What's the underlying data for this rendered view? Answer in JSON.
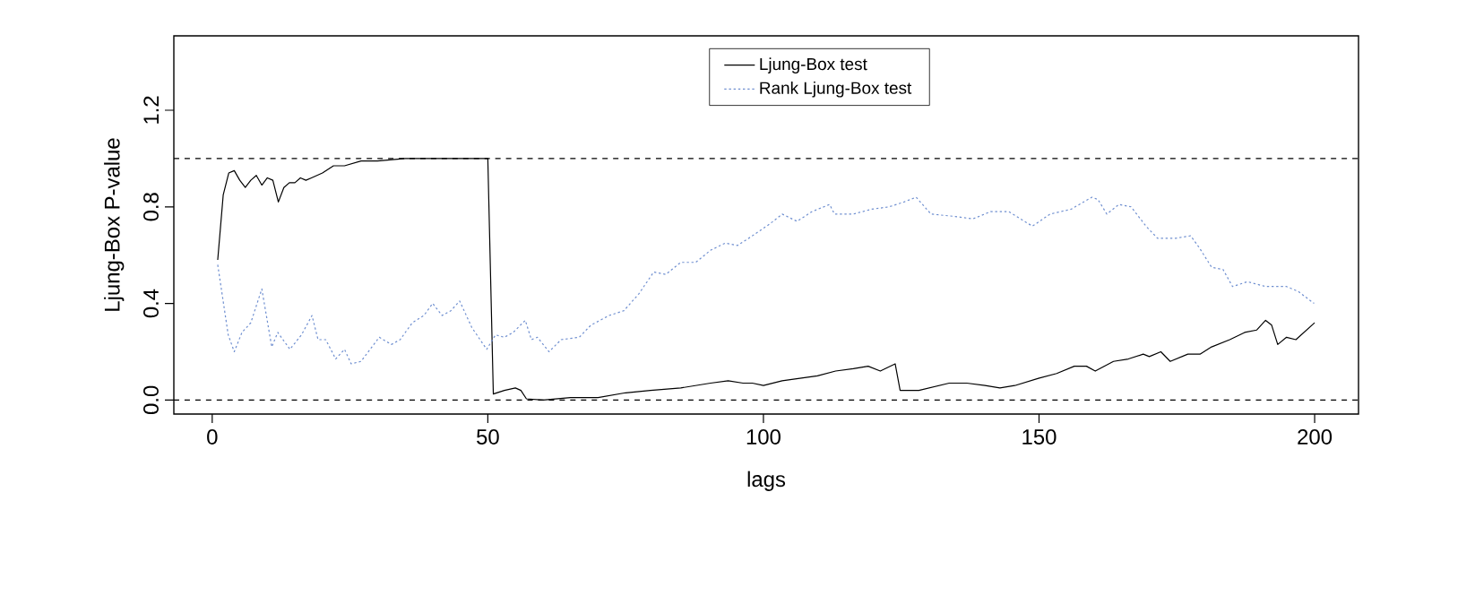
{
  "chart_data": {
    "type": "line",
    "xlabel": "lags",
    "ylabel": "Ljung-Box P-value",
    "xlim": [
      -6.96,
      207.96
    ],
    "ylim": [
      -0.058,
      1.508
    ],
    "xticks": [
      0,
      50,
      100,
      150,
      200
    ],
    "yticks": [
      {
        "value": 0,
        "label": "0.0"
      },
      {
        "value": 0.4,
        "label": "0.4"
      },
      {
        "value": 0.8,
        "label": "0.8"
      },
      {
        "value": 1.2,
        "label": "1.2"
      }
    ],
    "legend": "top",
    "ref_lines": [
      {
        "axis": "y",
        "value": 0,
        "color": "#000000",
        "line_style": "dashed"
      },
      {
        "axis": "y",
        "value": 1,
        "color": "#000000",
        "line_style": "dashed"
      }
    ],
    "series": [
      {
        "name": "Ljung-Box test",
        "color": "#000000",
        "line_style": "solid",
        "x": [
          1,
          2,
          3,
          4,
          5,
          6,
          7,
          8,
          9,
          10,
          11,
          12,
          13,
          14,
          15,
          16,
          17,
          18,
          20,
          22,
          24,
          27,
          30,
          35,
          40,
          45,
          50,
          51,
          53,
          55,
          56,
          57,
          60,
          65,
          70,
          75,
          79.5,
          85,
          90.4,
          93.6,
          96.3,
          98,
          100,
          103.4,
          106.6,
          109.8,
          113.1,
          116.3,
          119,
          121.2,
          123.9,
          124.8,
          128.2,
          133.7,
          136.9,
          140.2,
          142.9,
          145.6,
          149.9,
          153.2,
          156.4,
          158.6,
          160.2,
          163.5,
          166.2,
          168.9,
          170,
          172.1,
          173.8,
          177,
          179.2,
          181.3,
          184.6,
          187.3,
          189.5,
          191.1,
          192.2,
          193.3,
          194.9,
          196.6,
          200
        ],
        "values": [
          0.58,
          0.85,
          0.94,
          0.95,
          0.91,
          0.88,
          0.91,
          0.93,
          0.89,
          0.92,
          0.91,
          0.82,
          0.88,
          0.9,
          0.9,
          0.92,
          0.91,
          0.92,
          0.94,
          0.97,
          0.97,
          0.99,
          0.99,
          1.0,
          1.0,
          1.0,
          1.0,
          0.025,
          0.04,
          0.05,
          0.04,
          0.005,
          0.0,
          0.01,
          0.01,
          0.03,
          0.04,
          0.05,
          0.07,
          0.08,
          0.07,
          0.07,
          0.06,
          0.08,
          0.09,
          0.1,
          0.12,
          0.13,
          0.14,
          0.12,
          0.15,
          0.04,
          0.04,
          0.07,
          0.07,
          0.06,
          0.05,
          0.06,
          0.09,
          0.11,
          0.14,
          0.14,
          0.12,
          0.16,
          0.17,
          0.19,
          0.18,
          0.2,
          0.16,
          0.19,
          0.19,
          0.22,
          0.25,
          0.28,
          0.29,
          0.33,
          0.31,
          0.23,
          0.26,
          0.25,
          0.32
        ]
      },
      {
        "name": "Rank Ljung-Box test",
        "color": "#6f8fd0",
        "line_style": "dotted",
        "x": [
          1,
          2.9,
          4,
          5.4,
          7,
          9,
          10.8,
          11.9,
          14.1,
          16.2,
          18.1,
          19.2,
          20.6,
          22.4,
          24,
          25.2,
          27,
          30.3,
          32.5,
          34.1,
          36.3,
          38.4,
          40,
          41.7,
          43.3,
          44.9,
          47.1,
          49.8,
          51.4,
          53,
          54.6,
          56.8,
          57.9,
          59,
          61.1,
          63.3,
          66.6,
          68.7,
          72,
          74.7,
          77.4,
          80.1,
          82.3,
          85,
          87.7,
          90.4,
          93.1,
          95.3,
          98,
          101.2,
          103.4,
          106.1,
          108.8,
          112,
          112.9,
          116.3,
          119.6,
          122.8,
          125.5,
          127.7,
          130.4,
          134.8,
          138,
          141.2,
          144.5,
          148.8,
          152,
          155.8,
          159.6,
          160.7,
          162.3,
          164.5,
          166.7,
          169.4,
          171.5,
          174.8,
          177.5,
          179.1,
          181.3,
          183.4,
          185.1,
          187.8,
          191.1,
          194.9,
          197,
          199.9
        ],
        "values": [
          0.56,
          0.27,
          0.2,
          0.28,
          0.32,
          0.46,
          0.22,
          0.28,
          0.21,
          0.27,
          0.35,
          0.25,
          0.25,
          0.17,
          0.21,
          0.15,
          0.16,
          0.26,
          0.23,
          0.25,
          0.32,
          0.35,
          0.4,
          0.35,
          0.37,
          0.41,
          0.3,
          0.21,
          0.27,
          0.26,
          0.28,
          0.33,
          0.25,
          0.26,
          0.2,
          0.25,
          0.26,
          0.31,
          0.35,
          0.37,
          0.44,
          0.53,
          0.52,
          0.57,
          0.57,
          0.62,
          0.65,
          0.64,
          0.68,
          0.73,
          0.77,
          0.74,
          0.78,
          0.81,
          0.77,
          0.77,
          0.79,
          0.8,
          0.82,
          0.84,
          0.77,
          0.76,
          0.75,
          0.78,
          0.78,
          0.72,
          0.77,
          0.79,
          0.84,
          0.83,
          0.77,
          0.81,
          0.8,
          0.72,
          0.67,
          0.67,
          0.68,
          0.63,
          0.55,
          0.54,
          0.47,
          0.49,
          0.47,
          0.47,
          0.45,
          0.4
        ]
      }
    ]
  }
}
